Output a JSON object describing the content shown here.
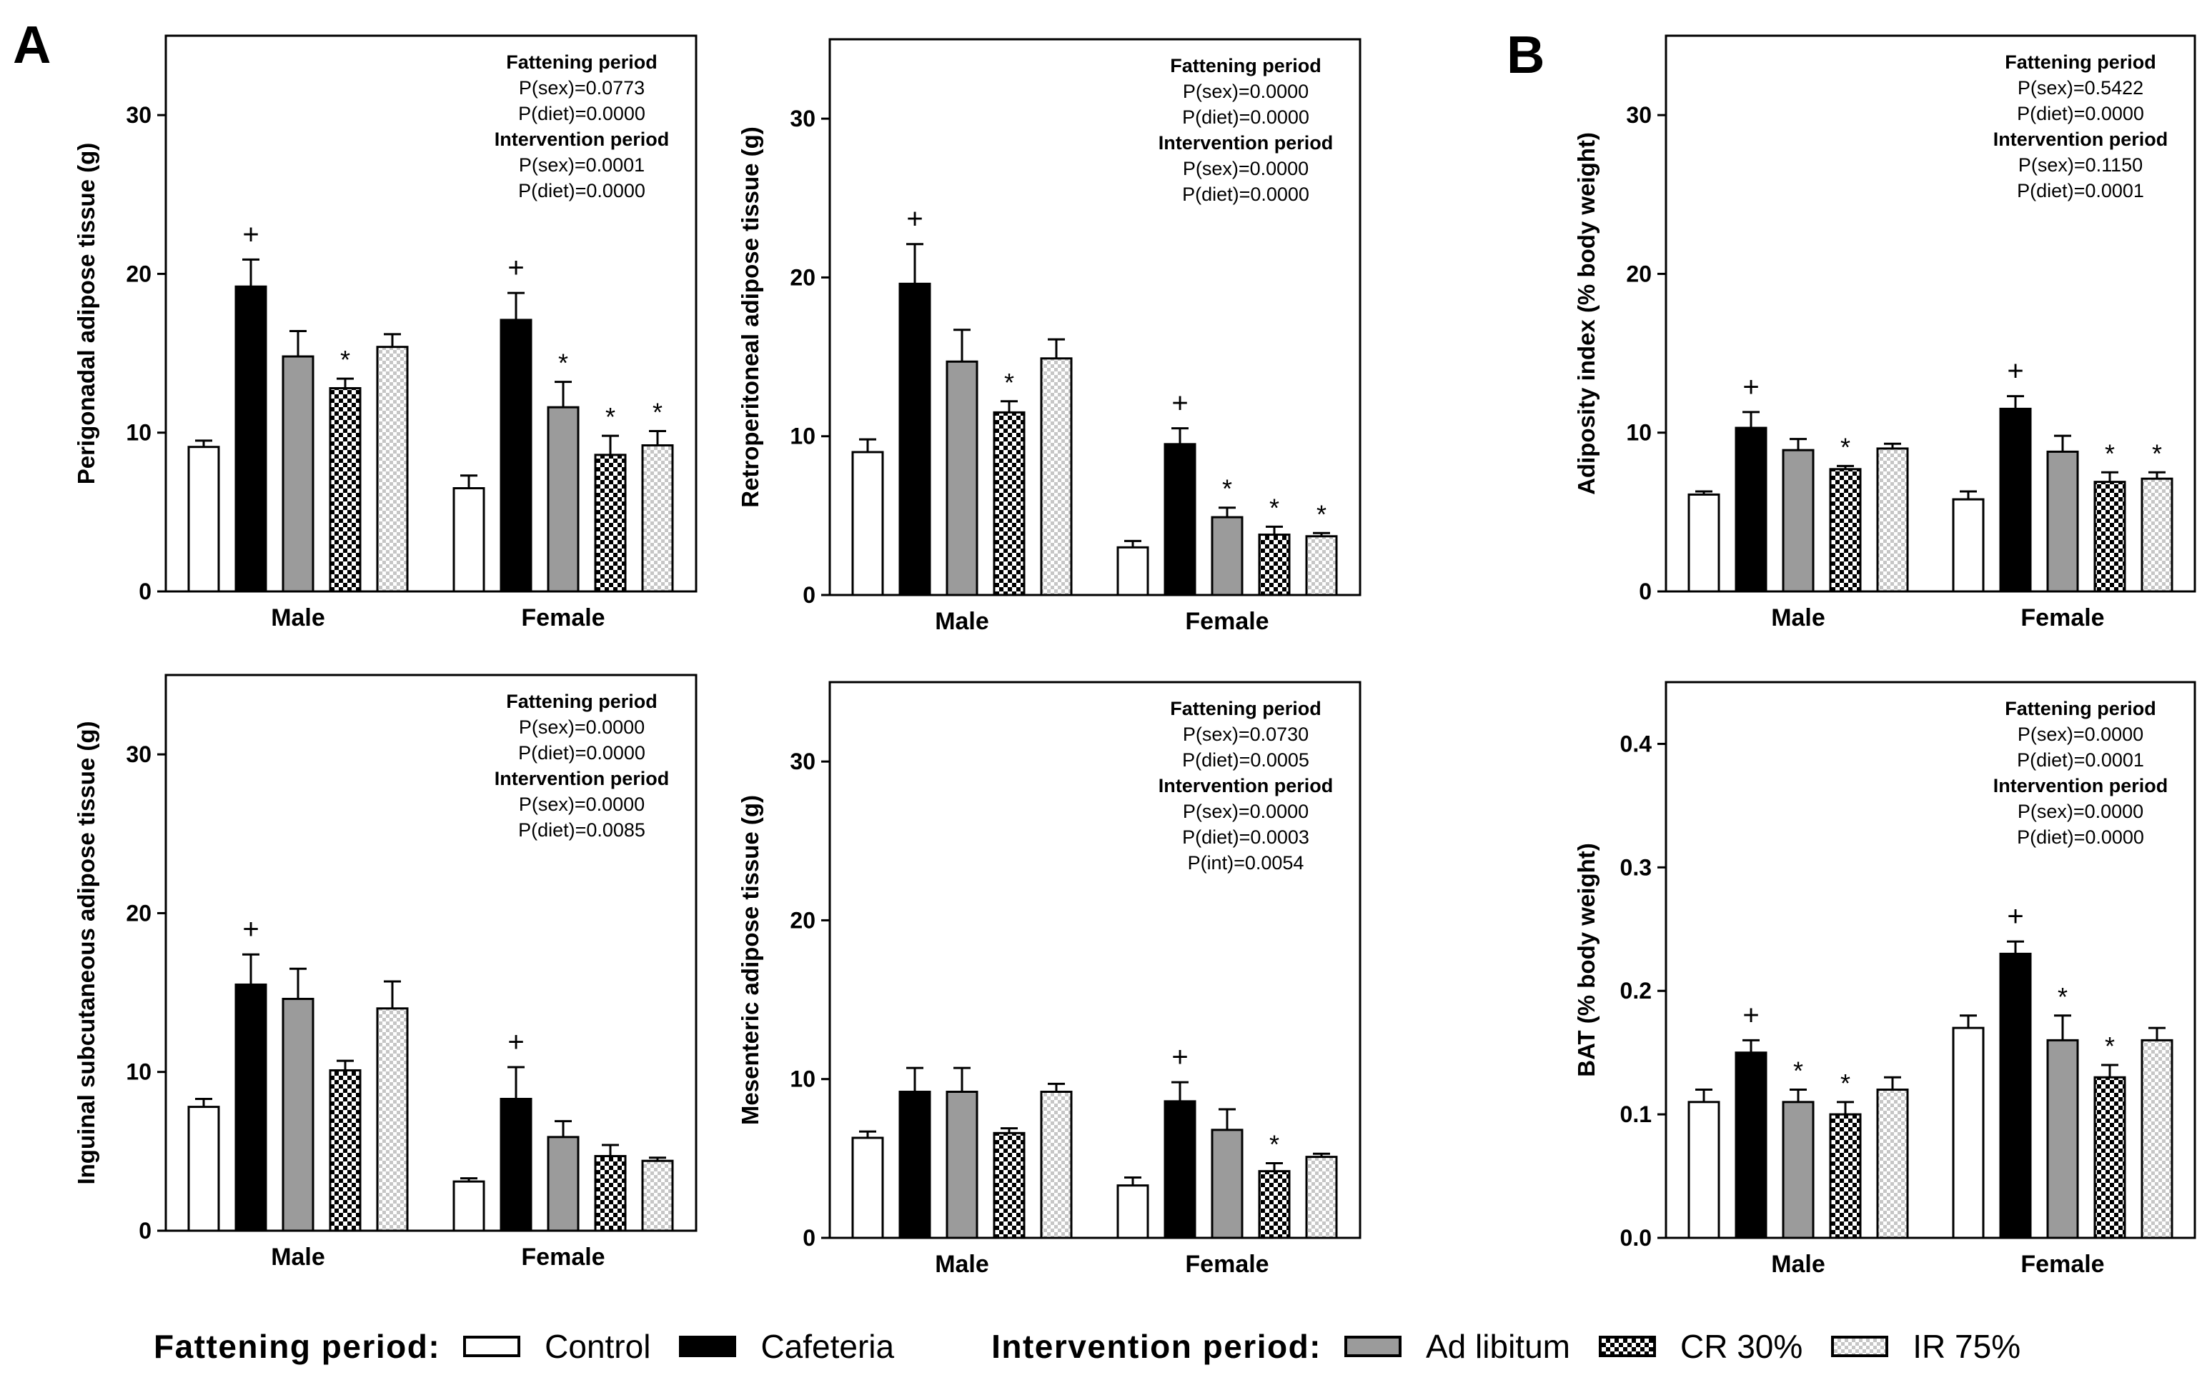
{
  "panel_labels": [
    "A",
    "B"
  ],
  "colors": {
    "control": "#ffffff",
    "cafeteria": "#000000",
    "ad_libitum": "#9b9b9b",
    "cr30": "checker-black-white",
    "ir75": "checker-light-gray"
  },
  "legend": {
    "fattening_title": "Fattening period:",
    "control": "Control",
    "cafeteria": "Cafeteria",
    "intervention_title": "Intervention period:",
    "ad_libitum": "Ad libitum",
    "cr30": "CR 30%",
    "ir75": "IR 75%"
  },
  "chart_data": [
    {
      "id": "perigonadal",
      "type": "bar",
      "title": "",
      "ylabel": "Perigonadal adipose tissue (g)",
      "ylim": [
        0,
        35
      ],
      "yticks": [
        "0",
        "10",
        "20",
        "30"
      ],
      "categories": [
        "Male",
        "Female"
      ],
      "series": [
        {
          "name": "Control",
          "values": [
            9.1,
            6.5
          ],
          "errors": [
            0.4,
            0.8
          ],
          "marks": [
            "",
            ""
          ]
        },
        {
          "name": "Cafeteria",
          "values": [
            19.2,
            17.1
          ],
          "errors": [
            1.7,
            1.7
          ],
          "marks": [
            "+",
            "+"
          ]
        },
        {
          "name": "Ad libitum",
          "values": [
            14.8,
            11.6
          ],
          "errors": [
            1.6,
            1.6
          ],
          "marks": [
            "",
            "*"
          ]
        },
        {
          "name": "CR 30%",
          "values": [
            12.8,
            8.6
          ],
          "errors": [
            0.6,
            1.2
          ],
          "marks": [
            "*",
            "*"
          ]
        },
        {
          "name": "IR 75%",
          "values": [
            15.4,
            9.2
          ],
          "errors": [
            0.8,
            0.9
          ],
          "marks": [
            "",
            "*"
          ]
        }
      ],
      "stats": [
        {
          "text": "Fattening period",
          "bold": true
        },
        {
          "text": "P(sex)=0.0773",
          "bold": false
        },
        {
          "text": "P(diet)=0.0000",
          "bold": false
        },
        {
          "text": "Intervention period",
          "bold": true
        },
        {
          "text": "P(sex)=0.0001",
          "bold": false
        },
        {
          "text": "P(diet)=0.0000",
          "bold": false
        }
      ]
    },
    {
      "id": "retroperitoneal",
      "type": "bar",
      "title": "",
      "ylabel": "Retroperitoneal adipose tissue (g)",
      "ylim": [
        0,
        35
      ],
      "yticks": [
        "0",
        "10",
        "20",
        "30"
      ],
      "categories": [
        "Male",
        "Female"
      ],
      "series": [
        {
          "name": "Control",
          "values": [
            9.0,
            3.0
          ],
          "errors": [
            0.8,
            0.4
          ],
          "marks": [
            "",
            ""
          ]
        },
        {
          "name": "Cafeteria",
          "values": [
            19.6,
            9.5
          ],
          "errors": [
            2.5,
            1.0
          ],
          "marks": [
            "+",
            "+"
          ]
        },
        {
          "name": "Ad libitum",
          "values": [
            14.7,
            4.9
          ],
          "errors": [
            2.0,
            0.6
          ],
          "marks": [
            "",
            "*"
          ]
        },
        {
          "name": "CR 30%",
          "values": [
            11.5,
            3.8
          ],
          "errors": [
            0.7,
            0.5
          ],
          "marks": [
            "*",
            "*"
          ]
        },
        {
          "name": "IR 75%",
          "values": [
            14.9,
            3.7
          ],
          "errors": [
            1.2,
            0.2
          ],
          "marks": [
            "",
            "*"
          ]
        }
      ],
      "stats": [
        {
          "text": "Fattening period",
          "bold": true
        },
        {
          "text": "P(sex)=0.0000",
          "bold": false
        },
        {
          "text": "P(diet)=0.0000",
          "bold": false
        },
        {
          "text": "Intervention period",
          "bold": true
        },
        {
          "text": "P(sex)=0.0000",
          "bold": false
        },
        {
          "text": "P(diet)=0.0000",
          "bold": false
        }
      ]
    },
    {
      "id": "adiposity",
      "type": "bar",
      "title": "",
      "ylabel": "Adiposity index (% body weight)",
      "ylim": [
        0,
        35
      ],
      "yticks": [
        "0",
        "10",
        "20",
        "30"
      ],
      "categories": [
        "Male",
        "Female"
      ],
      "series": [
        {
          "name": "Control",
          "values": [
            6.1,
            5.8
          ],
          "errors": [
            0.2,
            0.5
          ],
          "marks": [
            "",
            ""
          ]
        },
        {
          "name": "Cafeteria",
          "values": [
            10.3,
            11.5
          ],
          "errors": [
            1.0,
            0.8
          ],
          "marks": [
            "+",
            "+"
          ]
        },
        {
          "name": "Ad libitum",
          "values": [
            8.9,
            8.8
          ],
          "errors": [
            0.7,
            1.0
          ],
          "marks": [
            "",
            ""
          ]
        },
        {
          "name": "CR 30%",
          "values": [
            7.7,
            6.9
          ],
          "errors": [
            0.2,
            0.6
          ],
          "marks": [
            "*",
            "*"
          ]
        },
        {
          "name": "IR 75%",
          "values": [
            9.0,
            7.1
          ],
          "errors": [
            0.3,
            0.4
          ],
          "marks": [
            "",
            "*"
          ]
        }
      ],
      "stats": [
        {
          "text": "Fattening period",
          "bold": true
        },
        {
          "text": "P(sex)=0.5422",
          "bold": false
        },
        {
          "text": "P(diet)=0.0000",
          "bold": false
        },
        {
          "text": "Intervention period",
          "bold": true
        },
        {
          "text": "P(sex)=0.1150",
          "bold": false
        },
        {
          "text": "P(diet)=0.0001",
          "bold": false
        }
      ]
    },
    {
      "id": "inguinal",
      "type": "bar",
      "title": "",
      "ylabel": "Inguinal subcutaneous adipose tissue (g)",
      "ylim": [
        0,
        35
      ],
      "yticks": [
        "0",
        "10",
        "20",
        "30"
      ],
      "categories": [
        "Male",
        "Female"
      ],
      "series": [
        {
          "name": "Control",
          "values": [
            7.8,
            3.1
          ],
          "errors": [
            0.5,
            0.2
          ],
          "marks": [
            "",
            ""
          ]
        },
        {
          "name": "Cafeteria",
          "values": [
            15.5,
            8.3
          ],
          "errors": [
            1.9,
            2.0
          ],
          "marks": [
            "+",
            "+"
          ]
        },
        {
          "name": "Ad libitum",
          "values": [
            14.6,
            5.9
          ],
          "errors": [
            1.9,
            1.0
          ],
          "marks": [
            "",
            ""
          ]
        },
        {
          "name": "CR 30%",
          "values": [
            10.1,
            4.7
          ],
          "errors": [
            0.6,
            0.7
          ],
          "marks": [
            "",
            ""
          ]
        },
        {
          "name": "IR 75%",
          "values": [
            14.0,
            4.4
          ],
          "errors": [
            1.7,
            0.2
          ],
          "marks": [
            "",
            ""
          ]
        }
      ],
      "stats": [
        {
          "text": "Fattening period",
          "bold": true
        },
        {
          "text": "P(sex)=0.0000",
          "bold": false
        },
        {
          "text": "P(diet)=0.0000",
          "bold": false
        },
        {
          "text": "Intervention period",
          "bold": true
        },
        {
          "text": "P(sex)=0.0000",
          "bold": false
        },
        {
          "text": "P(diet)=0.0085",
          "bold": false
        }
      ]
    },
    {
      "id": "mesenteric",
      "type": "bar",
      "title": "",
      "ylabel": "Mesenteric adipose tissue (g)",
      "ylim": [
        0,
        35
      ],
      "yticks": [
        "0",
        "10",
        "20",
        "30"
      ],
      "categories": [
        "Male",
        "Female"
      ],
      "series": [
        {
          "name": "Control",
          "values": [
            6.3,
            3.3
          ],
          "errors": [
            0.4,
            0.5
          ],
          "marks": [
            "",
            ""
          ]
        },
        {
          "name": "Cafeteria",
          "values": [
            9.2,
            8.6
          ],
          "errors": [
            1.5,
            1.2
          ],
          "marks": [
            "",
            "+"
          ]
        },
        {
          "name": "Ad libitum",
          "values": [
            9.2,
            6.8
          ],
          "errors": [
            1.5,
            1.3
          ],
          "marks": [
            "",
            ""
          ]
        },
        {
          "name": "CR 30%",
          "values": [
            6.6,
            4.2
          ],
          "errors": [
            0.3,
            0.5
          ],
          "marks": [
            "",
            "*"
          ]
        },
        {
          "name": "IR 75%",
          "values": [
            9.2,
            5.1
          ],
          "errors": [
            0.5,
            0.2
          ],
          "marks": [
            "",
            ""
          ]
        }
      ],
      "stats": [
        {
          "text": "Fattening period",
          "bold": true
        },
        {
          "text": "P(sex)=0.0730",
          "bold": false
        },
        {
          "text": "P(diet)=0.0005",
          "bold": false
        },
        {
          "text": "Intervention period",
          "bold": true
        },
        {
          "text": "P(sex)=0.0000",
          "bold": false
        },
        {
          "text": "P(diet)=0.0003",
          "bold": false
        },
        {
          "text": "P(int)=0.0054",
          "bold": false
        }
      ]
    },
    {
      "id": "bat",
      "type": "bar",
      "title": "",
      "ylabel": "BAT (% body weight)",
      "ylim": [
        0,
        0.45
      ],
      "yticks": [
        "0.0",
        "0.1",
        "0.2",
        "0.3",
        "0.4"
      ],
      "categories": [
        "Male",
        "Female"
      ],
      "series": [
        {
          "name": "Control",
          "values": [
            0.11,
            0.17
          ],
          "errors": [
            0.01,
            0.01
          ],
          "marks": [
            "",
            ""
          ]
        },
        {
          "name": "Cafeteria",
          "values": [
            0.15,
            0.23
          ],
          "errors": [
            0.01,
            0.01
          ],
          "marks": [
            "+",
            "+"
          ]
        },
        {
          "name": "Ad libitum",
          "values": [
            0.11,
            0.16
          ],
          "errors": [
            0.01,
            0.02
          ],
          "marks": [
            "*",
            "*"
          ]
        },
        {
          "name": "CR 30%",
          "values": [
            0.1,
            0.13
          ],
          "errors": [
            0.01,
            0.01
          ],
          "marks": [
            "*",
            "*"
          ]
        },
        {
          "name": "IR 75%",
          "values": [
            0.12,
            0.16
          ],
          "errors": [
            0.01,
            0.01
          ],
          "marks": [
            "",
            ""
          ]
        }
      ],
      "stats": [
        {
          "text": "Fattening period",
          "bold": true
        },
        {
          "text": "P(sex)=0.0000",
          "bold": false
        },
        {
          "text": "P(diet)=0.0001",
          "bold": false
        },
        {
          "text": "Intervention period",
          "bold": true
        },
        {
          "text": "P(sex)=0.0000",
          "bold": false
        },
        {
          "text": "P(diet)=0.0000",
          "bold": false
        }
      ]
    }
  ]
}
